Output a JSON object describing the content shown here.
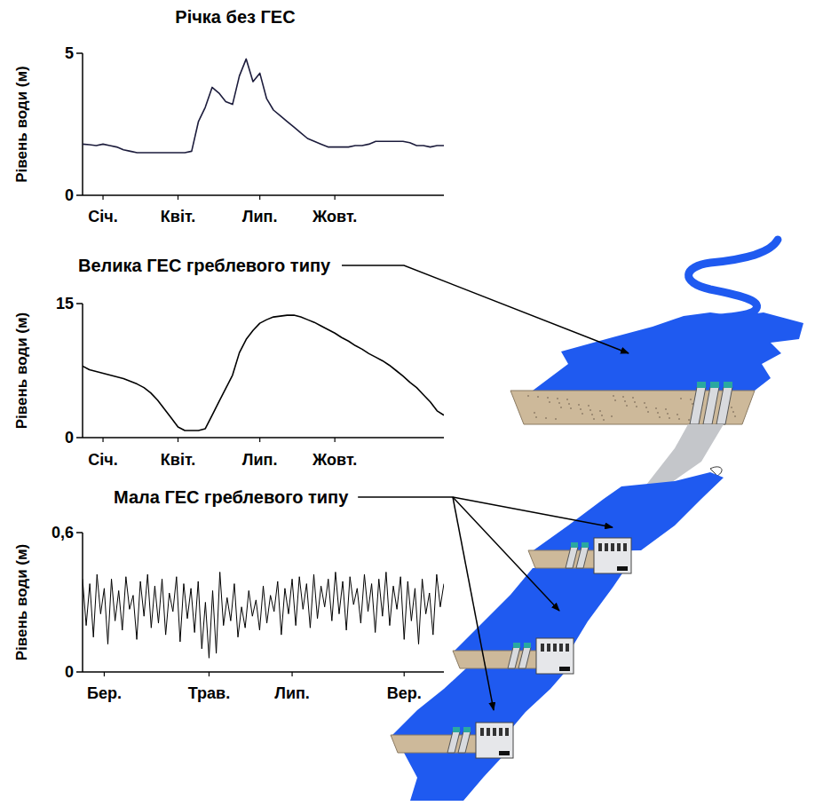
{
  "chart_data": [
    {
      "type": "line",
      "title": "Річка без ГЕС",
      "ylabel": "Рівень води (м)",
      "color": "#1c1c3c",
      "categories": [
        null,
        null,
        null,
        "Січ.",
        null,
        null,
        null,
        null,
        null,
        null,
        null,
        null,
        null,
        null,
        "Квіт.",
        null,
        null,
        null,
        null,
        null,
        null,
        null,
        null,
        null,
        null,
        null,
        "Лип.",
        null,
        null,
        null,
        null,
        null,
        null,
        null,
        null,
        null,
        null,
        "Жовт.",
        null,
        null,
        null,
        null,
        null,
        null,
        null,
        null,
        null,
        null,
        null,
        null,
        null,
        null,
        null,
        null
      ],
      "values": [
        1.8,
        1.78,
        1.75,
        1.8,
        1.75,
        1.7,
        1.6,
        1.55,
        1.5,
        1.5,
        1.5,
        1.5,
        1.5,
        1.5,
        1.5,
        1.5,
        1.55,
        2.6,
        3.1,
        3.8,
        3.6,
        3.3,
        3.2,
        4.2,
        4.8,
        4.0,
        4.3,
        3.4,
        3.0,
        2.8,
        2.6,
        2.4,
        2.2,
        2.0,
        1.9,
        1.8,
        1.7,
        1.7,
        1.7,
        1.7,
        1.75,
        1.75,
        1.8,
        1.9,
        1.9,
        1.9,
        1.9,
        1.9,
        1.85,
        1.75,
        1.75,
        1.7,
        1.75,
        1.75
      ],
      "ylim": [
        0,
        5
      ],
      "yticks": [
        0,
        5
      ]
    },
    {
      "type": "line",
      "title": "Велика ГЕС греблевого типу",
      "ylabel": "Рівень води (м)",
      "color": "#000000",
      "categories": [
        null,
        null,
        null,
        "Січ.",
        null,
        null,
        null,
        null,
        null,
        null,
        null,
        null,
        null,
        null,
        "Квіт.",
        null,
        null,
        null,
        null,
        null,
        null,
        null,
        null,
        null,
        null,
        null,
        "Лип.",
        null,
        null,
        null,
        null,
        null,
        null,
        null,
        null,
        null,
        null,
        "Жовт.",
        null,
        null,
        null,
        null,
        null,
        null,
        null,
        null,
        null,
        null,
        null,
        null,
        null,
        null,
        null,
        null
      ],
      "values": [
        8.0,
        7.6,
        7.4,
        7.2,
        7.0,
        6.8,
        6.6,
        6.3,
        6.0,
        5.6,
        5.0,
        4.2,
        3.2,
        2.2,
        1.2,
        0.8,
        0.8,
        0.8,
        1.0,
        2.5,
        4.0,
        5.5,
        7.0,
        9.5,
        11.0,
        12.0,
        12.8,
        13.2,
        13.5,
        13.6,
        13.7,
        13.7,
        13.5,
        13.2,
        12.9,
        12.5,
        12.1,
        11.7,
        11.2,
        10.8,
        10.3,
        9.9,
        9.4,
        9.0,
        8.6,
        8.1,
        7.5,
        6.9,
        6.2,
        5.6,
        4.8,
        4.0,
        3.0,
        2.5
      ],
      "ylim": [
        0,
        15
      ],
      "yticks": [
        0,
        15
      ]
    },
    {
      "type": "line",
      "title": "Мала ГЕС греблевого типу",
      "ylabel": "Рівень води (м)",
      "color": "#000000",
      "categories": [
        null,
        null,
        null,
        null,
        null,
        null,
        "Бер.",
        null,
        null,
        null,
        null,
        null,
        null,
        null,
        null,
        null,
        null,
        null,
        null,
        null,
        null,
        null,
        null,
        null,
        null,
        null,
        null,
        null,
        null,
        null,
        null,
        null,
        null,
        null,
        null,
        "Трав.",
        null,
        null,
        null,
        null,
        null,
        null,
        null,
        null,
        null,
        null,
        null,
        null,
        null,
        null,
        null,
        null,
        null,
        null,
        null,
        null,
        null,
        null,
        "Лип.",
        null,
        null,
        null,
        null,
        null,
        null,
        null,
        null,
        null,
        null,
        null,
        null,
        null,
        null,
        null,
        null,
        null,
        null,
        null,
        null,
        null,
        null,
        null,
        null,
        null,
        null,
        null,
        null,
        null,
        null,
        "Вер.",
        null,
        null,
        null,
        null,
        null,
        null,
        null,
        null,
        null,
        null,
        null
      ],
      "values": [
        0.4,
        0.2,
        0.38,
        0.15,
        0.42,
        0.25,
        0.36,
        0.12,
        0.4,
        0.22,
        0.35,
        0.18,
        0.41,
        0.27,
        0.33,
        0.14,
        0.39,
        0.24,
        0.42,
        0.19,
        0.37,
        0.21,
        0.4,
        0.16,
        0.34,
        0.26,
        0.41,
        0.13,
        0.38,
        0.23,
        0.36,
        0.17,
        0.39,
        0.1,
        0.3,
        0.06,
        0.35,
        0.08,
        0.43,
        0.2,
        0.32,
        0.22,
        0.38,
        0.15,
        0.28,
        0.19,
        0.35,
        0.24,
        0.31,
        0.18,
        0.37,
        0.21,
        0.33,
        0.26,
        0.39,
        0.16,
        0.36,
        0.25,
        0.4,
        0.2,
        0.41,
        0.27,
        0.38,
        0.19,
        0.42,
        0.23,
        0.37,
        0.28,
        0.4,
        0.22,
        0.43,
        0.25,
        0.39,
        0.18,
        0.41,
        0.29,
        0.36,
        0.21,
        0.42,
        0.26,
        0.38,
        0.17,
        0.4,
        0.24,
        0.43,
        0.2,
        0.37,
        0.27,
        0.41,
        0.14,
        0.39,
        0.22,
        0.36,
        0.12,
        0.4,
        0.25,
        0.34,
        0.16,
        0.42,
        0.28,
        0.38
      ],
      "ylim": [
        0,
        0.6
      ],
      "yticks": [
        0,
        {
          "value": 0.6,
          "label": "0,6"
        }
      ]
    }
  ]
}
